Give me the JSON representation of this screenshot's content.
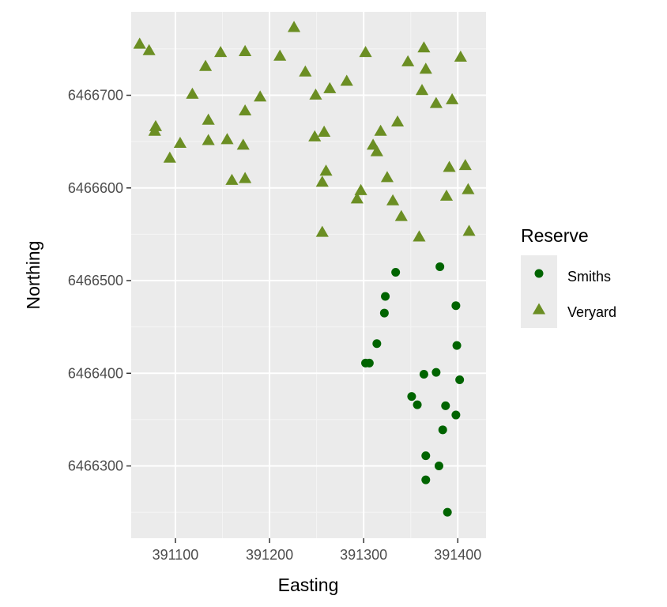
{
  "chart_data": {
    "type": "scatter",
    "title": "",
    "xlabel": "Easting",
    "ylabel": "Northing",
    "xlim": [
      391053,
      391430
    ],
    "ylim": [
      6466222,
      6466790
    ],
    "grid": true,
    "x_ticks": [
      391100,
      391200,
      391300,
      391400
    ],
    "x_tick_labels": [
      "391100",
      "391200",
      "391300",
      "391400"
    ],
    "y_ticks": [
      6466300,
      6466400,
      6466500,
      6466600,
      6466700
    ],
    "y_tick_labels": [
      "6466300",
      "6466400",
      "6466500",
      "6466600",
      "6466700"
    ],
    "legend": {
      "title": "Reserve",
      "position": "right"
    },
    "series": [
      {
        "name": "Smiths",
        "marker": "circle",
        "color": "#006400",
        "points": [
          [
            391334,
            6466509
          ],
          [
            391381,
            6466515
          ],
          [
            391323,
            6466483
          ],
          [
            391322,
            6466465
          ],
          [
            391398,
            6466473
          ],
          [
            391314,
            6466432
          ],
          [
            391302,
            6466411
          ],
          [
            391306,
            6466411
          ],
          [
            391399,
            6466430
          ],
          [
            391377,
            6466401
          ],
          [
            391364,
            6466399
          ],
          [
            391402,
            6466393
          ],
          [
            391351,
            6466375
          ],
          [
            391357,
            6466366
          ],
          [
            391387,
            6466365
          ],
          [
            391398,
            6466355
          ],
          [
            391384,
            6466339
          ],
          [
            391366,
            6466311
          ],
          [
            391380,
            6466300
          ],
          [
            391366,
            6466285
          ],
          [
            391389,
            6466250
          ]
        ]
      },
      {
        "name": "Veryard",
        "marker": "triangle",
        "color": "#6B8E23",
        "points": [
          [
            391226,
            6466773
          ],
          [
            391062,
            6466755
          ],
          [
            391072,
            6466748
          ],
          [
            391364,
            6466751
          ],
          [
            391148,
            6466746
          ],
          [
            391174,
            6466747
          ],
          [
            391302,
            6466746
          ],
          [
            391211,
            6466742
          ],
          [
            391403,
            6466741
          ],
          [
            391347,
            6466736
          ],
          [
            391132,
            6466731
          ],
          [
            391366,
            6466728
          ],
          [
            391238,
            6466725
          ],
          [
            391282,
            6466715
          ],
          [
            391264,
            6466707
          ],
          [
            391362,
            6466705
          ],
          [
            391118,
            6466701
          ],
          [
            391249,
            6466700
          ],
          [
            391190,
            6466698
          ],
          [
            391394,
            6466695
          ],
          [
            391377,
            6466691
          ],
          [
            391174,
            6466683
          ],
          [
            391135,
            6466673
          ],
          [
            391336,
            6466671
          ],
          [
            391079,
            6466666
          ],
          [
            391078,
            6466661
          ],
          [
            391318,
            6466661
          ],
          [
            391258,
            6466660
          ],
          [
            391248,
            6466655
          ],
          [
            391155,
            6466652
          ],
          [
            391135,
            6466651
          ],
          [
            391105,
            6466648
          ],
          [
            391310,
            6466646
          ],
          [
            391172,
            6466646
          ],
          [
            391314,
            6466639
          ],
          [
            391094,
            6466632
          ],
          [
            391408,
            6466624
          ],
          [
            391391,
            6466622
          ],
          [
            391260,
            6466618
          ],
          [
            391325,
            6466611
          ],
          [
            391174,
            6466610
          ],
          [
            391160,
            6466608
          ],
          [
            391256,
            6466606
          ],
          [
            391411,
            6466598
          ],
          [
            391297,
            6466597
          ],
          [
            391388,
            6466591
          ],
          [
            391293,
            6466588
          ],
          [
            391331,
            6466586
          ],
          [
            391340,
            6466569
          ],
          [
            391412,
            6466553
          ],
          [
            391256,
            6466552
          ],
          [
            391359,
            6466547
          ]
        ]
      }
    ]
  }
}
